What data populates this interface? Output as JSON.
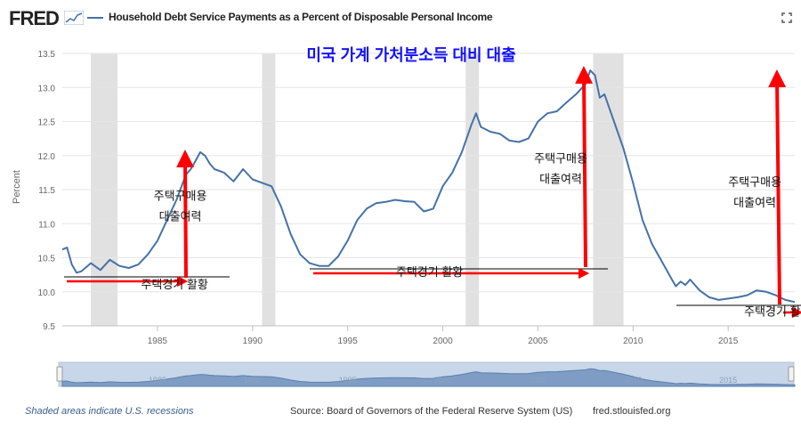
{
  "header": {
    "logo": "FRED",
    "series_title": "Household Debt Service Payments as a Percent of Disposable Personal Income"
  },
  "colors": {
    "series": "#4572a7",
    "recession": "#e1e1e1",
    "annotation": "#ff0000",
    "korean_title": "#1111ff"
  },
  "icons": [
    "fred-logo-icon",
    "legend-line-icon",
    "expand-icon"
  ],
  "chart_data": {
    "type": "line",
    "title": "미국 가계 가처분소득 대비 대출",
    "xlabel": "",
    "ylabel": "Percent",
    "xlim": [
      1980,
      2018.5
    ],
    "ylim": [
      9.5,
      13.5
    ],
    "xticks": [
      1985,
      1990,
      1995,
      2000,
      2005,
      2010,
      2015
    ],
    "yticks": [
      9.5,
      10.0,
      10.5,
      11.0,
      11.5,
      12.0,
      12.5,
      13.0,
      13.5
    ],
    "grid": true,
    "recessions": [
      [
        1981.5,
        1982.9
      ],
      [
        1990.5,
        1991.2
      ],
      [
        2001.2,
        2001.9
      ],
      [
        2007.9,
        2009.5
      ]
    ],
    "series": [
      {
        "name": "Household Debt Service Payments as a Percent of Disposable Personal Income",
        "x": [
          1980.0,
          1980.25,
          1980.5,
          1980.75,
          1981.0,
          1981.5,
          1982.0,
          1982.5,
          1983.0,
          1983.5,
          1984.0,
          1984.5,
          1985.0,
          1985.5,
          1986.0,
          1986.5,
          1986.75,
          1987.0,
          1987.25,
          1987.5,
          1987.75,
          1988.0,
          1988.5,
          1989.0,
          1989.5,
          1990.0,
          1990.5,
          1991.0,
          1991.5,
          1992.0,
          1992.5,
          1993.0,
          1993.5,
          1994.0,
          1994.5,
          1995.0,
          1995.5,
          1996.0,
          1996.5,
          1997.0,
          1997.5,
          1998.0,
          1998.5,
          1999.0,
          1999.5,
          2000.0,
          2000.5,
          2001.0,
          2001.5,
          2001.75,
          2002.0,
          2002.5,
          2003.0,
          2003.5,
          2004.0,
          2004.5,
          2005.0,
          2005.5,
          2006.0,
          2006.5,
          2007.0,
          2007.5,
          2007.75,
          2008.0,
          2008.25,
          2008.5,
          2009.0,
          2009.5,
          2010.0,
          2010.5,
          2011.0,
          2011.5,
          2012.0,
          2012.25,
          2012.5,
          2012.75,
          2013.0,
          2013.5,
          2014.0,
          2014.5,
          2015.0,
          2015.5,
          2016.0,
          2016.5,
          2017.0,
          2017.5,
          2018.0,
          2018.5
        ],
        "values": [
          10.62,
          10.65,
          10.4,
          10.28,
          10.3,
          10.42,
          10.32,
          10.47,
          10.38,
          10.35,
          10.4,
          10.55,
          10.75,
          11.05,
          11.35,
          11.72,
          11.8,
          11.92,
          12.05,
          12.0,
          11.88,
          11.8,
          11.75,
          11.62,
          11.8,
          11.65,
          11.6,
          11.55,
          11.25,
          10.85,
          10.55,
          10.42,
          10.38,
          10.38,
          10.52,
          10.75,
          11.05,
          11.22,
          11.3,
          11.32,
          11.35,
          11.33,
          11.32,
          11.18,
          11.22,
          11.55,
          11.75,
          12.05,
          12.45,
          12.62,
          12.42,
          12.35,
          12.32,
          12.22,
          12.2,
          12.25,
          12.5,
          12.62,
          12.65,
          12.78,
          12.9,
          13.05,
          13.25,
          13.18,
          12.85,
          12.9,
          12.5,
          12.1,
          11.6,
          11.05,
          10.7,
          10.45,
          10.2,
          10.08,
          10.15,
          10.1,
          10.18,
          10.02,
          9.92,
          9.88,
          9.9,
          9.92,
          9.95,
          10.02,
          10.0,
          9.95,
          9.88,
          9.85
        ]
      }
    ],
    "annotations": [
      {
        "kind": "label",
        "text": "주택구매용",
        "x": 1986.2,
        "y": 11.35
      },
      {
        "kind": "label",
        "text": "대출여력",
        "x": 1986.2,
        "y": 11.05
      },
      {
        "kind": "label",
        "text": "주택경기 활황",
        "x": 1985.9,
        "y": 10.05
      },
      {
        "kind": "label",
        "text": "주택구매용",
        "x": 2006.2,
        "y": 11.9
      },
      {
        "kind": "label",
        "text": "대출여력",
        "x": 2006.2,
        "y": 11.6
      },
      {
        "kind": "label",
        "text": "주택경기 활황",
        "x": 1999.3,
        "y": 10.23
      },
      {
        "kind": "label",
        "text": "주택구매용",
        "x": 2016.4,
        "y": 11.55
      },
      {
        "kind": "label",
        "text": "대출여력",
        "x": 2016.4,
        "y": 11.25
      },
      {
        "kind": "label",
        "text": "주택경기 활황",
        "x": 2017.6,
        "y": 9.65
      }
    ],
    "navigator": {
      "xticks": [
        1985,
        1990,
        1995,
        2000,
        2005,
        2010,
        2015
      ]
    }
  },
  "footer": {
    "recession_note": "Shaded areas indicate U.S. recessions",
    "source": "Source: Board of Governors of the Federal Reserve System (US)",
    "site": "fred.stlouisfed.org"
  }
}
